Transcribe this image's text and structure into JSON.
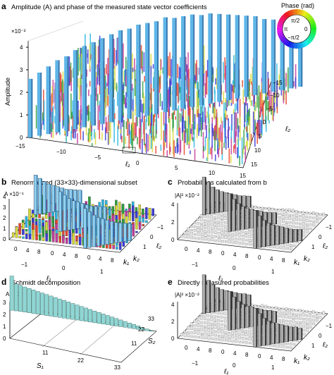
{
  "figure": {
    "panel_a": {
      "letter": "a",
      "title": "Amplitude (A) and phase of the measured state vector coefficients",
      "scale": "×10⁻²",
      "ylabel": "Amplitude",
      "yticks": [
        "0",
        "1",
        "2",
        "3",
        "4"
      ],
      "ell1_ticks": [
        "−15",
        "−10",
        "−5",
        "0",
        "5",
        "10",
        "15"
      ],
      "ell1_label": "ℓ₁",
      "ell2_ticks": [
        "−15",
        "−10",
        "−5",
        "0",
        "5",
        "10",
        "15"
      ],
      "ell2_label": "ℓ₂",
      "phase_title": "Phase (rad)",
      "phase_labels": [
        "π/2",
        "π",
        "0",
        "−π/2"
      ]
    },
    "panel_b": {
      "letter": "b",
      "title": "Renormalized (33×33)-dimensional subset",
      "scale": "A ×10⁻¹",
      "yticks": [
        "0",
        "1",
        "2",
        "3",
        "4"
      ],
      "ell1_label": "ℓ₁",
      "ell2_label": "ℓ₂",
      "k_labels": [
        "k₁",
        "k₂"
      ],
      "x_ticks": [
        "0",
        "4",
        "8",
        "0",
        "4",
        "8",
        "0",
        "4",
        "8"
      ],
      "ell1_ticks": [
        "−1",
        "0",
        "1"
      ],
      "ell2_ticks": [
        "−1",
        "0",
        "1"
      ]
    },
    "panel_c": {
      "letter": "c",
      "title": "Probabilities calculated from b",
      "scale": "|A|² ×10⁻²",
      "yticks": [
        "0",
        "2",
        "4"
      ],
      "ell1_label": "ℓ₁",
      "ell2_label": "ℓ₂",
      "k_labels": [
        "k₁",
        "k₂"
      ],
      "x_ticks": [
        "0",
        "4",
        "8",
        "0",
        "4",
        "8",
        "0",
        "4",
        "8"
      ],
      "ell1_ticks": [
        "−1",
        "0",
        "1"
      ],
      "ell2_ticks": [
        "−1",
        "0",
        "1"
      ]
    },
    "panel_d": {
      "letter": "d",
      "title": "Schmidt decomposition",
      "scale": "A ×10⁻¹",
      "yticks": [
        "0",
        "1",
        "2",
        "3"
      ],
      "s1_ticks": [
        "11",
        "22",
        "33"
      ],
      "s2_ticks": [
        "33",
        "22",
        "11"
      ],
      "s1_label": "S₁",
      "s2_label": "S₂"
    },
    "panel_e": {
      "letter": "e",
      "title": "Directly measured probabilities",
      "scale": "|A|² ×10⁻²",
      "yticks": [
        "0",
        "2",
        "4"
      ],
      "ell1_label": "ℓ₁",
      "ell2_label": "ℓ₂",
      "k_labels": [
        "k₁",
        "k₂"
      ],
      "x_ticks": [
        "0",
        "4",
        "8",
        "0",
        "4",
        "8",
        "0",
        "4",
        "8"
      ],
      "ell1_ticks": [
        "−1",
        "0",
        "1"
      ],
      "ell2_ticks": [
        "−1",
        "0",
        "1"
      ]
    }
  },
  "chart_data": [
    {
      "type": "bar",
      "panel": "a",
      "title": "Amplitude (A) and phase of the measured state vector coefficients",
      "ylabel": "Amplitude",
      "xlabel": "ℓ₁",
      "zlabel": "ℓ₂",
      "x_range": [
        -15,
        15
      ],
      "z_range": [
        -15,
        15
      ],
      "ylim": [
        0,
        0.045
      ],
      "y_scale_factor": "1e-2",
      "ell1_anti_diagonal": [
        -15,
        -14,
        -13,
        -12,
        -11,
        -10,
        -9,
        -8,
        -7,
        -6,
        -5,
        -4,
        -3,
        -2,
        -1,
        0,
        1,
        2,
        3,
        4,
        5,
        6,
        7,
        8,
        9,
        10,
        11,
        12,
        13,
        14,
        15
      ],
      "anti_diagonal_amplitude": [
        0.026,
        0.028,
        0.03,
        0.032,
        0.033,
        0.035,
        0.036,
        0.037,
        0.038,
        0.039,
        0.04,
        0.04,
        0.041,
        0.041,
        0.041,
        0.042,
        0.041,
        0.041,
        0.041,
        0.04,
        0.04,
        0.039,
        0.038,
        0.037,
        0.036,
        0.035,
        0.033,
        0.032,
        0.03,
        0.028,
        0.026
      ],
      "off_diagonal_amplitude_max": 0.012,
      "phase_colorscale": [
        "#2f9e3f",
        "#d8d83a",
        "#e6452e",
        "#c23c9a",
        "#3b3bd8",
        "#2db6e0"
      ]
    },
    {
      "type": "bar",
      "panel": "b",
      "title": "Renormalized (33×33)-dimensional subset",
      "ylabel": "A ×10⁻¹",
      "ylim": [
        0,
        4.5
      ],
      "ell_values": [
        -1,
        0,
        1
      ],
      "k_values": [
        0,
        1,
        2,
        3,
        4,
        5,
        6,
        7,
        8,
        9,
        10
      ],
      "peak_bars_ell_pairs": [
        [
          -1,
          1
        ],
        [
          0,
          0
        ],
        [
          1,
          -1
        ]
      ],
      "peak_amplitude_profile_x1e-1": [
        3.9,
        3.5,
        3.1,
        2.8,
        2.6,
        2.4,
        2.2,
        2.0,
        1.9,
        1.8,
        1.7
      ]
    },
    {
      "type": "bar",
      "panel": "c",
      "title": "Probabilities calculated from b",
      "ylabel": "|A|² ×10⁻²",
      "ylim": [
        0,
        5
      ],
      "peak_probability_profile_x1e-2": [
        4.3,
        3.6,
        3.0,
        2.6,
        2.3,
        2.1,
        1.9,
        1.7,
        1.5,
        1.4,
        1.3
      ]
    },
    {
      "type": "bar",
      "panel": "d",
      "title": "Schmidt decomposition",
      "ylabel": "A ×10⁻¹",
      "xlabel": "S₁",
      "zlabel": "S₂",
      "x_range": [
        1,
        33
      ],
      "ylim": [
        0,
        3
      ],
      "schmidt_index": [
        1,
        2,
        3,
        4,
        5,
        6,
        7,
        8,
        9,
        10,
        11,
        12,
        13,
        14,
        15,
        16,
        17,
        18,
        19,
        20,
        21,
        22,
        23,
        24,
        25,
        26,
        27,
        28,
        29,
        30,
        31,
        32,
        33
      ],
      "schmidt_coefficients_x1e-1": [
        2.85,
        2.25,
        2.18,
        2.1,
        2.03,
        1.96,
        1.89,
        1.82,
        1.75,
        1.68,
        1.61,
        1.54,
        1.47,
        1.4,
        1.33,
        1.26,
        1.19,
        1.12,
        1.05,
        0.98,
        0.91,
        0.84,
        0.77,
        0.7,
        0.63,
        0.56,
        0.49,
        0.42,
        0.35,
        0.28,
        0.21,
        0.14,
        0.07
      ]
    },
    {
      "type": "bar",
      "panel": "e",
      "title": "Directly measured probabilities",
      "ylabel": "|A|² ×10⁻²",
      "ylim": [
        0,
        5
      ],
      "peak_probability_profile_x1e-2": [
        4.4,
        3.7,
        3.1,
        2.7,
        2.4,
        2.2,
        2.0,
        1.8,
        1.6,
        1.5,
        1.3
      ]
    }
  ]
}
